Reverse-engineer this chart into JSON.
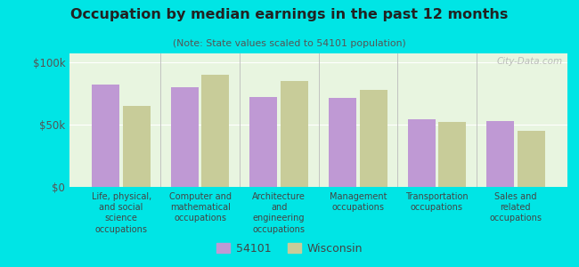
{
  "title": "Occupation by median earnings in the past 12 months",
  "subtitle": "(Note: State values scaled to 54101 population)",
  "categories": [
    "Life, physical,\nand social\nscience\noccupations",
    "Computer and\nmathematical\noccupations",
    "Architecture\nand\nengineering\noccupations",
    "Management\noccupations",
    "Transportation\noccupations",
    "Sales and\nrelated\noccupations"
  ],
  "values_54101": [
    82000,
    80000,
    72000,
    71000,
    54000,
    53000
  ],
  "values_wisconsin": [
    65000,
    90000,
    85000,
    78000,
    52000,
    45000
  ],
  "color_54101": "#bf99d4",
  "color_wisconsin": "#c8cc99",
  "background_outer": "#00e5e5",
  "background_plot": "#e8f5e0",
  "yticks": [
    0,
    50000,
    100000
  ],
  "ytick_labels": [
    "$0",
    "$50k",
    "$100k"
  ],
  "ylim": [
    0,
    107000
  ],
  "legend_54101": "54101",
  "legend_wisconsin": "Wisconsin",
  "watermark": "City-Data.com"
}
